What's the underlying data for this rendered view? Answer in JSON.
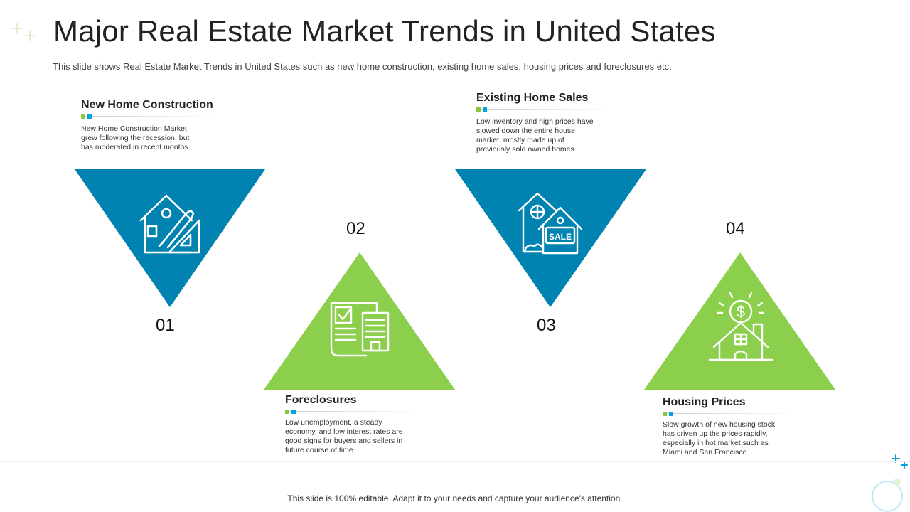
{
  "title": "Major Real Estate Market Trends in United States",
  "subtitle": "This slide shows Real Estate Market Trends in United States such as new home construction, existing home sales, housing prices and foreclosures etc.",
  "colors": {
    "blue": "#0083b0",
    "green": "#8ccf4d",
    "accent_green": "#8cc63f",
    "accent_blue": "#00a3e0"
  },
  "items": [
    {
      "number": "01",
      "heading": "New Home Construction",
      "text": [
        "New Home  Construction Market",
        "grew following the recession, but",
        "has moderated  in recent months"
      ],
      "icon": "house-blueprint-icon"
    },
    {
      "number": "02",
      "heading": "Foreclosures",
      "text": [
        "Low unemployment,  a steady",
        "economy, and low interest rates are",
        "good signs for buyers and sellers in",
        "future course of time"
      ],
      "icon": "document-building-icon"
    },
    {
      "number": "03",
      "heading": "Existing Home Sales",
      "text": [
        "Low inventory and high prices have",
        "slowed down the entire house",
        "market,  mostly made  up of",
        "previously sold owned homes"
      ],
      "icon": "house-sale-icon"
    },
    {
      "number": "04",
      "heading": "Housing Prices",
      "text": [
        "Slow growth of new housing stock",
        "has driven up the prices rapidly,",
        "especially in hot market such as",
        "Miami  and San Francisco"
      ],
      "icon": "house-dollar-icon"
    }
  ],
  "footer": "This slide is 100% editable. Adapt it to your needs and capture your audience's attention."
}
